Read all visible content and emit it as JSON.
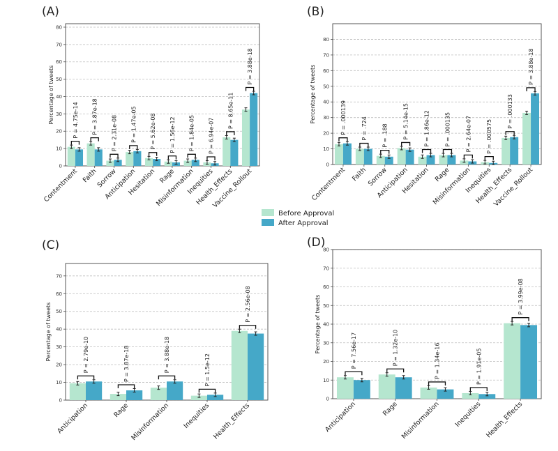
{
  "legend": {
    "before_label": "Before Approval",
    "after_label": "After Approval"
  },
  "colors": {
    "before": "#b5e6cf",
    "after": "#45a8c8",
    "grid": "#bdbdbd",
    "axis": "#444444"
  },
  "chart_data": [
    {
      "type": "bar",
      "panel": "(A)",
      "ylabel": "Percentage of tweets",
      "ylim": [
        0,
        82
      ],
      "yticks": [
        0,
        10,
        20,
        30,
        40,
        50,
        60,
        70,
        80
      ],
      "grid": true,
      "categories": [
        "Contentment",
        "Faith",
        "Sorrow",
        "Anticipation",
        "Hesitation",
        "Rage",
        "Misinformation",
        "Inequities",
        "Health_Effects",
        "Vaccine_Rollout"
      ],
      "series": [
        {
          "name": "Before Approval",
          "values": [
            11,
            13,
            3,
            8,
            4.5,
            2.5,
            3,
            2,
            16.5,
            32.5
          ]
        },
        {
          "name": "After Approval",
          "values": [
            9.5,
            9.5,
            3.5,
            8.5,
            4,
            2,
            3.5,
            1.5,
            15,
            42
          ]
        }
      ],
      "pvalues": [
        "P = 4.75e-14",
        "P = 3.87e-18",
        "P = 2.31e-08",
        "P = 1.47e-05",
        "P = 5.62e-08",
        "P = 1.56e-12",
        "P = 1.84e-05",
        "P = 6.94e-07",
        "P = 8.65e-11",
        "P = 3.88e-18"
      ]
    },
    {
      "type": "bar",
      "panel": "(B)",
      "ylabel": "Percentage of tweets",
      "ylim": [
        0,
        90
      ],
      "yticks": [
        0,
        10,
        20,
        30,
        40,
        50,
        60,
        70,
        80
      ],
      "grid": true,
      "categories": [
        "Contentment",
        "Faith",
        "Sorrow",
        "Anticipation",
        "Hesitation",
        "Rage",
        "Misinformation",
        "Inequities",
        "Health_Effects",
        "Vaccine_Rollout"
      ],
      "series": [
        {
          "name": "Before Approval",
          "values": [
            13,
            10,
            5.5,
            10.5,
            5,
            6,
            2.5,
            1.5,
            17,
            33
          ]
        },
        {
          "name": "After Approval",
          "values": [
            13.5,
            10,
            5,
            9.5,
            6,
            6,
            2,
            1,
            17.5,
            45.5
          ]
        }
      ],
      "pvalues": [
        "P = .000139",
        "P = .724",
        "P = .188",
        "P = 5.14e-15",
        "P = 1.86e-12",
        "P = .000135",
        "P = 2.64e-07",
        "P = .000575",
        "P = .000133",
        "P = 3.88e-18"
      ]
    },
    {
      "type": "bar",
      "panel": "(C)",
      "ylabel": "Percentage of tweets",
      "ylim": [
        0,
        77
      ],
      "yticks": [
        0,
        10,
        20,
        30,
        40,
        50,
        60,
        70
      ],
      "grid": true,
      "categories": [
        "Anticipation",
        "Rage",
        "Misinformation",
        "Inequities",
        "Health_Effects"
      ],
      "series": [
        {
          "name": "Before Approval",
          "values": [
            9.5,
            3.5,
            7,
            2.5,
            39
          ]
        },
        {
          "name": "After Approval",
          "values": [
            10.5,
            5.5,
            10.5,
            3,
            37.5
          ]
        }
      ],
      "pvalues": [
        "P = 2.79e-10",
        "P = 3.87e-18",
        "P = 3.88e-18",
        "P = 1.5e-12",
        "P = 2.56e-08"
      ]
    },
    {
      "type": "bar",
      "panel": "(D)",
      "ylabel": "Percentage of tweets",
      "ylim": [
        0,
        80
      ],
      "yticks": [
        0,
        10,
        20,
        30,
        40,
        50,
        60,
        70,
        80
      ],
      "grid": true,
      "categories": [
        "Anticipation",
        "Rage",
        "Misinformation",
        "Inequities",
        "Health_Effects"
      ],
      "series": [
        {
          "name": "Before Approval",
          "values": [
            11.5,
            13,
            6,
            3,
            40.5
          ]
        },
        {
          "name": "After Approval",
          "values": [
            10,
            11.5,
            5,
            2.5,
            39.5
          ]
        }
      ],
      "pvalues": [
        "P = 7.56e-17",
        "P = 1.32e-10",
        "P = 1.34e-16",
        "P = 1.91e-05",
        "P = 3.99e-08"
      ]
    }
  ]
}
